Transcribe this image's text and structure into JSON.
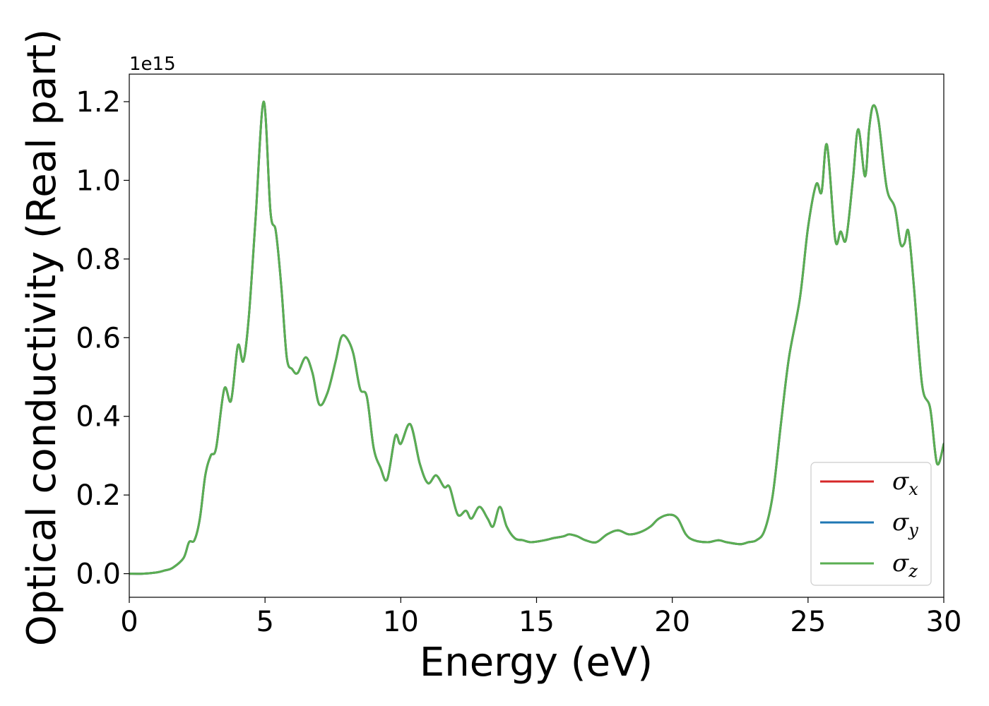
{
  "chart_data": {
    "type": "line",
    "xlabel": "Energy (eV)",
    "ylabel": "Optical conductivity (Real part)",
    "y_offset_label": "1e15",
    "xlim": [
      0,
      30
    ],
    "ylim": [
      -0.06,
      1.27
    ],
    "xticks": [
      0,
      5,
      10,
      15,
      20,
      25,
      30
    ],
    "xtick_labels": [
      "0",
      "5",
      "10",
      "15",
      "20",
      "25",
      "30"
    ],
    "yticks": [
      0.0,
      0.2,
      0.4,
      0.6,
      0.8,
      1.0,
      1.2
    ],
    "ytick_labels": [
      "0.0",
      "0.2",
      "0.4",
      "0.6",
      "0.8",
      "1.0",
      "1.2"
    ],
    "grid": false,
    "legend_position": "bottom-right",
    "series": [
      {
        "name": "σx",
        "legend_symbol": "σ",
        "legend_sub": "x",
        "color": "#d62728",
        "x": [
          0,
          0.5,
          1.0,
          1.3,
          1.6,
          2.0,
          2.2,
          2.4,
          2.6,
          2.8,
          3.0,
          3.2,
          3.5,
          3.75,
          4.0,
          4.2,
          4.4,
          4.65,
          4.95,
          5.2,
          5.4,
          5.6,
          5.8,
          6.0,
          6.2,
          6.5,
          6.75,
          7.0,
          7.3,
          7.6,
          7.8,
          8.0,
          8.25,
          8.5,
          8.75,
          9.0,
          9.25,
          9.5,
          9.8,
          10.0,
          10.35,
          10.7,
          11.0,
          11.3,
          11.6,
          11.8,
          12.1,
          12.4,
          12.6,
          12.9,
          13.2,
          13.4,
          13.65,
          13.9,
          14.2,
          14.5,
          14.8,
          15.3,
          15.6,
          16.0,
          16.2,
          16.5,
          16.8,
          17.2,
          17.6,
          18.0,
          18.4,
          18.8,
          19.2,
          19.5,
          19.9,
          20.2,
          20.5,
          20.8,
          21.3,
          21.7,
          22.0,
          22.5,
          22.8,
          23.1,
          23.4,
          23.7,
          24.0,
          24.3,
          24.7,
          25.0,
          25.3,
          25.5,
          25.7,
          26.0,
          26.2,
          26.4,
          26.65,
          26.85,
          27.1,
          27.25,
          27.4,
          27.6,
          27.9,
          28.2,
          28.4,
          28.55,
          28.7,
          28.9,
          29.2,
          29.5,
          29.75,
          30.0
        ],
        "y": [
          0.0,
          0.0,
          0.003,
          0.008,
          0.015,
          0.04,
          0.08,
          0.085,
          0.14,
          0.25,
          0.3,
          0.32,
          0.47,
          0.44,
          0.58,
          0.54,
          0.65,
          0.9,
          1.2,
          0.92,
          0.87,
          0.73,
          0.55,
          0.52,
          0.51,
          0.55,
          0.51,
          0.43,
          0.46,
          0.54,
          0.6,
          0.6,
          0.56,
          0.47,
          0.45,
          0.32,
          0.27,
          0.24,
          0.35,
          0.33,
          0.38,
          0.28,
          0.23,
          0.25,
          0.22,
          0.22,
          0.15,
          0.16,
          0.14,
          0.17,
          0.14,
          0.12,
          0.17,
          0.12,
          0.09,
          0.085,
          0.08,
          0.085,
          0.09,
          0.095,
          0.1,
          0.095,
          0.085,
          0.08,
          0.1,
          0.11,
          0.1,
          0.105,
          0.12,
          0.14,
          0.15,
          0.14,
          0.1,
          0.085,
          0.08,
          0.085,
          0.08,
          0.075,
          0.08,
          0.085,
          0.11,
          0.2,
          0.38,
          0.55,
          0.7,
          0.88,
          0.99,
          0.97,
          1.09,
          0.85,
          0.87,
          0.85,
          1.0,
          1.13,
          1.01,
          1.13,
          1.19,
          1.15,
          0.98,
          0.93,
          0.84,
          0.84,
          0.87,
          0.73,
          0.48,
          0.42,
          0.28,
          0.33
        ]
      },
      {
        "name": "σy",
        "legend_symbol": "σ",
        "legend_sub": "y",
        "color": "#1f77b4",
        "x": [
          0,
          0.5,
          1.0,
          1.3,
          1.6,
          2.0,
          2.2,
          2.4,
          2.6,
          2.8,
          3.0,
          3.2,
          3.5,
          3.75,
          4.0,
          4.2,
          4.4,
          4.65,
          4.95,
          5.2,
          5.4,
          5.6,
          5.8,
          6.0,
          6.2,
          6.5,
          6.75,
          7.0,
          7.3,
          7.6,
          7.8,
          8.0,
          8.25,
          8.5,
          8.75,
          9.0,
          9.25,
          9.5,
          9.8,
          10.0,
          10.35,
          10.7,
          11.0,
          11.3,
          11.6,
          11.8,
          12.1,
          12.4,
          12.6,
          12.9,
          13.2,
          13.4,
          13.65,
          13.9,
          14.2,
          14.5,
          14.8,
          15.3,
          15.6,
          16.0,
          16.2,
          16.5,
          16.8,
          17.2,
          17.6,
          18.0,
          18.4,
          18.8,
          19.2,
          19.5,
          19.9,
          20.2,
          20.5,
          20.8,
          21.3,
          21.7,
          22.0,
          22.5,
          22.8,
          23.1,
          23.4,
          23.7,
          24.0,
          24.3,
          24.7,
          25.0,
          25.3,
          25.5,
          25.7,
          26.0,
          26.2,
          26.4,
          26.65,
          26.85,
          27.1,
          27.25,
          27.4,
          27.6,
          27.9,
          28.2,
          28.4,
          28.55,
          28.7,
          28.9,
          29.2,
          29.5,
          29.75,
          30.0
        ],
        "y": [
          0.0,
          0.0,
          0.003,
          0.008,
          0.015,
          0.04,
          0.08,
          0.085,
          0.14,
          0.25,
          0.3,
          0.32,
          0.47,
          0.44,
          0.58,
          0.54,
          0.65,
          0.9,
          1.2,
          0.92,
          0.87,
          0.73,
          0.55,
          0.52,
          0.51,
          0.55,
          0.51,
          0.43,
          0.46,
          0.54,
          0.6,
          0.6,
          0.56,
          0.47,
          0.45,
          0.32,
          0.27,
          0.24,
          0.35,
          0.33,
          0.38,
          0.28,
          0.23,
          0.25,
          0.22,
          0.22,
          0.15,
          0.16,
          0.14,
          0.17,
          0.14,
          0.12,
          0.17,
          0.12,
          0.09,
          0.085,
          0.08,
          0.085,
          0.09,
          0.095,
          0.1,
          0.095,
          0.085,
          0.08,
          0.1,
          0.11,
          0.1,
          0.105,
          0.12,
          0.14,
          0.15,
          0.14,
          0.1,
          0.085,
          0.08,
          0.085,
          0.08,
          0.075,
          0.08,
          0.085,
          0.11,
          0.2,
          0.38,
          0.55,
          0.7,
          0.88,
          0.99,
          0.97,
          1.09,
          0.85,
          0.87,
          0.85,
          1.0,
          1.13,
          1.01,
          1.13,
          1.19,
          1.15,
          0.98,
          0.93,
          0.84,
          0.84,
          0.87,
          0.73,
          0.48,
          0.42,
          0.28,
          0.33
        ]
      },
      {
        "name": "σz",
        "legend_symbol": "σ",
        "legend_sub": "z",
        "color": "#5aae52",
        "x": [
          0,
          0.5,
          1.0,
          1.3,
          1.6,
          2.0,
          2.2,
          2.4,
          2.6,
          2.8,
          3.0,
          3.2,
          3.5,
          3.75,
          4.0,
          4.2,
          4.4,
          4.65,
          4.95,
          5.2,
          5.4,
          5.6,
          5.8,
          6.0,
          6.2,
          6.5,
          6.75,
          7.0,
          7.3,
          7.6,
          7.8,
          8.0,
          8.25,
          8.5,
          8.75,
          9.0,
          9.25,
          9.5,
          9.8,
          10.0,
          10.35,
          10.7,
          11.0,
          11.3,
          11.6,
          11.8,
          12.1,
          12.4,
          12.6,
          12.9,
          13.2,
          13.4,
          13.65,
          13.9,
          14.2,
          14.5,
          14.8,
          15.3,
          15.6,
          16.0,
          16.2,
          16.5,
          16.8,
          17.2,
          17.6,
          18.0,
          18.4,
          18.8,
          19.2,
          19.5,
          19.9,
          20.2,
          20.5,
          20.8,
          21.3,
          21.7,
          22.0,
          22.5,
          22.8,
          23.1,
          23.4,
          23.7,
          24.0,
          24.3,
          24.7,
          25.0,
          25.3,
          25.5,
          25.7,
          26.0,
          26.2,
          26.4,
          26.65,
          26.85,
          27.1,
          27.25,
          27.4,
          27.6,
          27.9,
          28.2,
          28.4,
          28.55,
          28.7,
          28.9,
          29.2,
          29.5,
          29.75,
          30.0
        ],
        "y": [
          0.0,
          0.0,
          0.003,
          0.008,
          0.015,
          0.04,
          0.08,
          0.085,
          0.14,
          0.25,
          0.3,
          0.32,
          0.47,
          0.44,
          0.58,
          0.54,
          0.65,
          0.9,
          1.2,
          0.92,
          0.87,
          0.73,
          0.55,
          0.52,
          0.51,
          0.55,
          0.51,
          0.43,
          0.46,
          0.54,
          0.6,
          0.6,
          0.56,
          0.47,
          0.45,
          0.32,
          0.27,
          0.24,
          0.35,
          0.33,
          0.38,
          0.28,
          0.23,
          0.25,
          0.22,
          0.22,
          0.15,
          0.16,
          0.14,
          0.17,
          0.14,
          0.12,
          0.17,
          0.12,
          0.09,
          0.085,
          0.08,
          0.085,
          0.09,
          0.095,
          0.1,
          0.095,
          0.085,
          0.08,
          0.1,
          0.11,
          0.1,
          0.105,
          0.12,
          0.14,
          0.15,
          0.14,
          0.1,
          0.085,
          0.08,
          0.085,
          0.08,
          0.075,
          0.08,
          0.085,
          0.11,
          0.2,
          0.38,
          0.55,
          0.7,
          0.88,
          0.99,
          0.97,
          1.09,
          0.85,
          0.87,
          0.85,
          1.0,
          1.13,
          1.01,
          1.13,
          1.19,
          1.15,
          0.98,
          0.93,
          0.84,
          0.84,
          0.87,
          0.73,
          0.48,
          0.42,
          0.28,
          0.33
        ]
      }
    ]
  }
}
